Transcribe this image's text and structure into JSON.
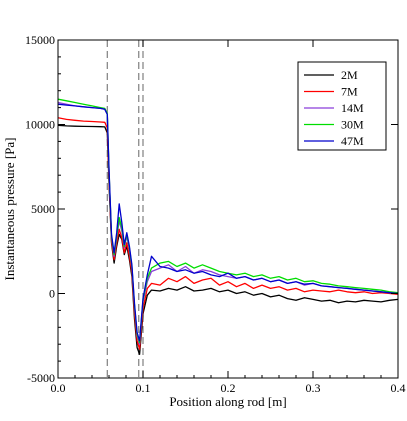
{
  "chart_data": {
    "type": "line",
    "title": "",
    "xlabel": "Position along rod [m]",
    "ylabel": "Instantaneous pressure [Pa]",
    "xlim": [
      0.0,
      0.4
    ],
    "ylim": [
      -5000,
      15000
    ],
    "x_ticks": [
      0.0,
      0.1,
      0.2,
      0.3,
      0.4
    ],
    "x_tick_labels": [
      "0.0",
      "0.1",
      "0.2",
      "0.3",
      "0.4"
    ],
    "y_ticks": [
      -5000,
      0,
      5000,
      10000,
      15000
    ],
    "y_tick_labels": [
      "-5000",
      "0",
      "5000",
      "10000",
      "15000"
    ],
    "grid": false,
    "legend_position": "top-right",
    "vertical_reference_lines": [
      0.058,
      0.095,
      0.1
    ],
    "series": [
      {
        "name": "2M",
        "color": "#000000",
        "x": [
          0.0,
          0.01,
          0.02,
          0.03,
          0.04,
          0.05,
          0.055,
          0.058,
          0.06,
          0.063,
          0.066,
          0.069,
          0.072,
          0.075,
          0.078,
          0.081,
          0.084,
          0.087,
          0.09,
          0.093,
          0.096,
          0.1,
          0.105,
          0.11,
          0.12,
          0.13,
          0.14,
          0.15,
          0.16,
          0.17,
          0.18,
          0.19,
          0.2,
          0.21,
          0.22,
          0.23,
          0.24,
          0.25,
          0.26,
          0.27,
          0.28,
          0.29,
          0.3,
          0.31,
          0.32,
          0.33,
          0.34,
          0.35,
          0.36,
          0.37,
          0.38,
          0.39,
          0.4
        ],
        "y": [
          9950,
          9920,
          9900,
          9890,
          9880,
          9870,
          9860,
          9500,
          6500,
          3000,
          1800,
          2800,
          3500,
          3200,
          2300,
          2800,
          2000,
          1000,
          -1500,
          -3200,
          -3600,
          -1200,
          -100,
          200,
          150,
          300,
          200,
          400,
          150,
          200,
          300,
          100,
          200,
          0,
          100,
          -100,
          0,
          -200,
          -100,
          -300,
          -400,
          -250,
          -350,
          -450,
          -400,
          -550,
          -450,
          -500,
          -400,
          -450,
          -500,
          -400,
          -350
        ]
      },
      {
        "name": "7M",
        "color": "#ff0000",
        "x": [
          0.0,
          0.01,
          0.02,
          0.03,
          0.04,
          0.05,
          0.055,
          0.058,
          0.06,
          0.063,
          0.066,
          0.069,
          0.072,
          0.075,
          0.078,
          0.081,
          0.084,
          0.087,
          0.09,
          0.093,
          0.096,
          0.1,
          0.105,
          0.11,
          0.12,
          0.13,
          0.14,
          0.15,
          0.16,
          0.17,
          0.18,
          0.19,
          0.2,
          0.21,
          0.22,
          0.23,
          0.24,
          0.25,
          0.26,
          0.27,
          0.28,
          0.29,
          0.3,
          0.31,
          0.32,
          0.33,
          0.34,
          0.35,
          0.36,
          0.37,
          0.38,
          0.39,
          0.4
        ],
        "y": [
          10400,
          10300,
          10250,
          10200,
          10180,
          10150,
          10130,
          9800,
          6800,
          3100,
          2000,
          3000,
          3800,
          3300,
          2400,
          3000,
          2200,
          1200,
          -1200,
          -2800,
          -3300,
          -900,
          300,
          600,
          500,
          900,
          700,
          1000,
          600,
          800,
          900,
          500,
          700,
          400,
          600,
          300,
          500,
          300,
          400,
          200,
          300,
          100,
          200,
          150,
          100,
          200,
          100,
          50,
          100,
          0,
          50,
          0,
          -50
        ]
      },
      {
        "name": "14M",
        "color": "#8b3fd9",
        "x": [
          0.0,
          0.01,
          0.02,
          0.03,
          0.04,
          0.05,
          0.055,
          0.058,
          0.06,
          0.063,
          0.066,
          0.069,
          0.072,
          0.075,
          0.078,
          0.081,
          0.084,
          0.087,
          0.09,
          0.093,
          0.096,
          0.1,
          0.105,
          0.11,
          0.12,
          0.13,
          0.14,
          0.15,
          0.16,
          0.17,
          0.18,
          0.19,
          0.2,
          0.21,
          0.22,
          0.23,
          0.24,
          0.25,
          0.26,
          0.27,
          0.28,
          0.29,
          0.3,
          0.31,
          0.32,
          0.33,
          0.34,
          0.35,
          0.36,
          0.37,
          0.38,
          0.39,
          0.4
        ],
        "y": [
          11300,
          11200,
          11100,
          11050,
          11000,
          10950,
          10900,
          10600,
          7200,
          3300,
          2200,
          3300,
          4300,
          3700,
          2700,
          3400,
          2600,
          1500,
          -800,
          -2500,
          -3000,
          -500,
          700,
          1300,
          1500,
          1700,
          1300,
          1600,
          1200,
          1400,
          1300,
          1100,
          1000,
          900,
          1000,
          800,
          900,
          700,
          800,
          600,
          700,
          500,
          600,
          450,
          400,
          350,
          300,
          250,
          200,
          150,
          100,
          50,
          0
        ]
      },
      {
        "name": "30M",
        "color": "#00dd00",
        "x": [
          0.0,
          0.01,
          0.02,
          0.03,
          0.04,
          0.05,
          0.055,
          0.058,
          0.06,
          0.063,
          0.066,
          0.069,
          0.072,
          0.075,
          0.078,
          0.081,
          0.084,
          0.087,
          0.09,
          0.093,
          0.096,
          0.1,
          0.105,
          0.11,
          0.12,
          0.13,
          0.14,
          0.15,
          0.16,
          0.17,
          0.18,
          0.19,
          0.2,
          0.21,
          0.22,
          0.23,
          0.24,
          0.25,
          0.26,
          0.27,
          0.28,
          0.29,
          0.3,
          0.31,
          0.32,
          0.33,
          0.34,
          0.35,
          0.36,
          0.37,
          0.38,
          0.39,
          0.4
        ],
        "y": [
          11500,
          11400,
          11300,
          11200,
          11100,
          11000,
          10950,
          10650,
          7300,
          3400,
          2300,
          3400,
          4500,
          3900,
          2800,
          3500,
          2700,
          1600,
          -700,
          -2400,
          -2900,
          -400,
          900,
          1500,
          1800,
          1900,
          1600,
          1800,
          1500,
          1700,
          1500,
          1300,
          1200,
          1100,
          1200,
          1000,
          1100,
          900,
          1000,
          800,
          900,
          700,
          750,
          600,
          550,
          450,
          400,
          350,
          300,
          250,
          200,
          100,
          50
        ]
      },
      {
        "name": "47M",
        "color": "#0000cc",
        "x": [
          0.0,
          0.01,
          0.02,
          0.03,
          0.04,
          0.05,
          0.055,
          0.058,
          0.06,
          0.063,
          0.066,
          0.069,
          0.072,
          0.075,
          0.078,
          0.081,
          0.084,
          0.087,
          0.09,
          0.093,
          0.096,
          0.1,
          0.105,
          0.11,
          0.12,
          0.13,
          0.14,
          0.15,
          0.16,
          0.17,
          0.18,
          0.19,
          0.2,
          0.21,
          0.22,
          0.23,
          0.24,
          0.25,
          0.26,
          0.27,
          0.28,
          0.29,
          0.3,
          0.31,
          0.32,
          0.33,
          0.34,
          0.35,
          0.36,
          0.37,
          0.38,
          0.39,
          0.4
        ],
        "y": [
          11200,
          11150,
          11100,
          11050,
          11000,
          10950,
          10900,
          10600,
          7400,
          3500,
          2400,
          3600,
          5300,
          4200,
          2900,
          3600,
          2800,
          1700,
          -600,
          -2300,
          -2800,
          -300,
          1100,
          2200,
          1600,
          1500,
          1300,
          1400,
          1200,
          1300,
          1100,
          1000,
          1200,
          900,
          1000,
          800,
          900,
          700,
          800,
          600,
          700,
          550,
          600,
          450,
          400,
          350,
          300,
          250,
          200,
          150,
          100,
          50,
          0
        ]
      }
    ]
  }
}
